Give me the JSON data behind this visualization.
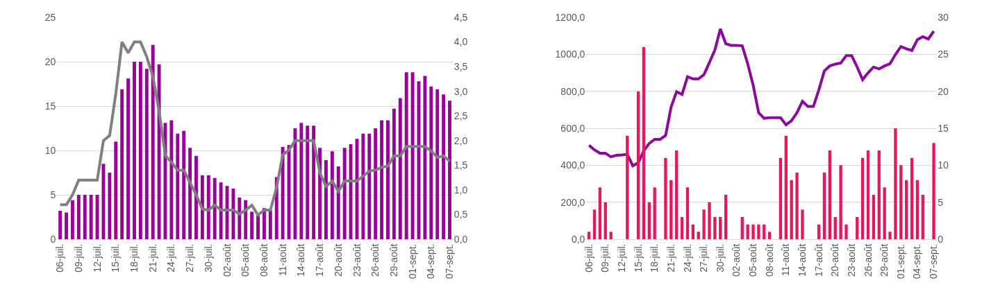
{
  "chart_data": [
    {
      "type": "bar",
      "categories": [
        "06-juil.",
        null,
        null,
        "09-juil.",
        null,
        null,
        "12-juil.",
        null,
        null,
        "15-juil.",
        null,
        null,
        "18-juil.",
        null,
        null,
        "21-juil.",
        null,
        null,
        "24-juil.",
        null,
        null,
        "27-juil.",
        null,
        null,
        "30-juil.",
        null,
        null,
        "02-août",
        null,
        null,
        "05-août",
        null,
        null,
        "08-août",
        null,
        null,
        "11-août",
        null,
        null,
        "14-août",
        null,
        null,
        "17-août",
        null,
        null,
        "20-août",
        null,
        null,
        "23-août",
        null,
        null,
        "26-août",
        null,
        null,
        "29-août",
        null,
        null,
        "01-sept.",
        null,
        null,
        "04-sept.",
        null,
        null,
        "07-sept."
      ],
      "series": [
        {
          "color": "#990099",
          "values": [
            3.2,
            3.0,
            4.4,
            5.0,
            5.0,
            5.0,
            5.0,
            8.5,
            7.5,
            11.0,
            16.9,
            18.1,
            20.0,
            20.0,
            19.2,
            21.9,
            19.7,
            13.1,
            13.4,
            11.9,
            12.2,
            10.3,
            9.4,
            7.2,
            7.2,
            6.9,
            6.4,
            6.0,
            5.7,
            4.7,
            4.4,
            3.1,
            2.7,
            3.5,
            3.3,
            7.0,
            10.4,
            10.6,
            12.5,
            13.1,
            12.8,
            12.8,
            10.3,
            8.9,
            9.9,
            8.2,
            10.3,
            10.7,
            11.3,
            11.9,
            11.9,
            12.5,
            13.4,
            13.4,
            14.7,
            15.9,
            18.8,
            18.8,
            17.8,
            18.4,
            17.2,
            16.9,
            16.3,
            15.6
          ]
        },
        {
          "type": "line",
          "axis": "y2",
          "color": "#7f7f7f",
          "values": [
            0.7,
            0.7,
            0.9,
            1.2,
            1.2,
            1.2,
            1.2,
            2.0,
            2.1,
            2.95,
            4.0,
            3.78,
            4.0,
            4.0,
            3.7,
            3.3,
            2.6,
            1.7,
            1.56,
            1.4,
            1.4,
            1.15,
            0.9,
            0.61,
            0.59,
            0.69,
            0.59,
            0.59,
            0.59,
            0.51,
            0.59,
            0.69,
            0.49,
            0.59,
            0.59,
            1.05,
            1.71,
            1.81,
            2.0,
            2.0,
            2.0,
            2.0,
            1.35,
            1.07,
            1.18,
            0.97,
            1.18,
            1.18,
            1.18,
            1.28,
            1.38,
            1.4,
            1.46,
            1.48,
            1.69,
            1.69,
            1.88,
            1.88,
            1.88,
            1.88,
            1.79,
            1.66,
            1.69,
            1.58
          ]
        }
      ],
      "ylim": [
        0,
        25
      ],
      "yticks": [
        0,
        5,
        10,
        15,
        20,
        25
      ],
      "y2lim": [
        0,
        4.5
      ],
      "y2ticks": [
        {
          "value": 0,
          "label": "0,0"
        },
        {
          "value": 0.5,
          "label": "0,5"
        },
        {
          "value": 1,
          "label": "1,0"
        },
        {
          "value": 1.5,
          "label": "1,5"
        },
        {
          "value": 2,
          "label": "2,0"
        },
        {
          "value": 2.5,
          "label": "2,5"
        },
        {
          "value": 3,
          "label": "3,0"
        },
        {
          "value": 3.5,
          "label": "3,5"
        },
        {
          "value": 4,
          "label": "4,0"
        },
        {
          "value": 4.5,
          "label": "4,5"
        }
      ],
      "grid": "y"
    },
    {
      "type": "bar",
      "categories": [
        "06-juil.",
        null,
        null,
        "09-juil.",
        null,
        null,
        "12-juil.",
        null,
        null,
        "15-juil.",
        null,
        null,
        "18-juil.",
        null,
        null,
        "21-juil.",
        null,
        null,
        "24-juil.",
        null,
        null,
        "27-juil.",
        null,
        null,
        "30-juil.",
        null,
        null,
        "02-août",
        null,
        null,
        "05-août",
        null,
        null,
        "08-août",
        null,
        null,
        "11-août",
        null,
        null,
        "14-août",
        null,
        null,
        "17-août",
        null,
        null,
        "20-août",
        null,
        null,
        "23-août",
        null,
        null,
        "26-août",
        null,
        null,
        "29-août",
        null,
        null,
        "01-sept.",
        null,
        null,
        "04-sept.",
        null,
        null,
        "07-sept."
      ],
      "series": [
        {
          "axis": "y2",
          "color": "#e8175d",
          "values": [
            1,
            4,
            7,
            5,
            1,
            0,
            0,
            14,
            0,
            20,
            26,
            5,
            7,
            0,
            11,
            8,
            12,
            3,
            7,
            2,
            1,
            4,
            5,
            3,
            3,
            6,
            0,
            0,
            3,
            2,
            2,
            2,
            2,
            1,
            0,
            11,
            14,
            8,
            9,
            4,
            0,
            0,
            2,
            9,
            12,
            3,
            10,
            2,
            0,
            3,
            11,
            12,
            6,
            12,
            7,
            1,
            15,
            10,
            8,
            11,
            8,
            6,
            0,
            13
          ]
        },
        {
          "type": "line",
          "color": "#8b0a9b",
          "values": [
            508,
            483,
            465,
            465,
            446,
            454,
            456,
            459,
            397,
            413,
            478,
            518,
            540,
            540,
            561,
            715,
            798,
            783,
            879,
            867,
            867,
            890,
            956,
            1023,
            1137,
            1057,
            1048,
            1048,
            1046,
            949,
            832,
            684,
            654,
            657,
            657,
            657,
            619,
            641,
            684,
            746,
            718,
            718,
            808,
            910,
            937,
            947,
            953,
            993,
            993,
            931,
            863,
            900,
            931,
            921,
            937,
            949,
            999,
            1042,
            1030,
            1021,
            1079,
            1095,
            1083,
            1125
          ]
        }
      ],
      "ylim": [
        0,
        1200
      ],
      "yticks": [
        {
          "value": 0,
          "label": "0,0"
        },
        {
          "value": 200,
          "label": "200,0"
        },
        {
          "value": 400,
          "label": "400,0"
        },
        {
          "value": 600,
          "label": "600,0"
        },
        {
          "value": 800,
          "label": "800,0"
        },
        {
          "value": 1000,
          "label": "1000,0"
        },
        {
          "value": 1200,
          "label": "1200,0"
        }
      ],
      "y2lim": [
        0,
        30
      ],
      "y2ticks": [
        0,
        5,
        10,
        15,
        20,
        25,
        30
      ],
      "grid": "y"
    }
  ]
}
